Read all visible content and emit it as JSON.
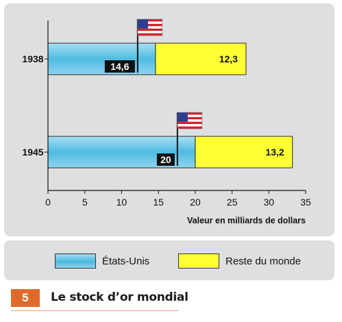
{
  "chart_data": {
    "type": "bar",
    "orientation": "horizontal",
    "stacked": true,
    "categories": [
      "1938",
      "1945"
    ],
    "series": [
      {
        "name": "États-Unis",
        "values": [
          14.6,
          20
        ],
        "labels": [
          "14,6",
          "20"
        ],
        "color": "#5cc3e6"
      },
      {
        "name": "Reste du monde",
        "values": [
          12.3,
          13.2
        ],
        "labels": [
          "12,3",
          "13,2"
        ],
        "color": "#ffff33"
      }
    ],
    "xlim": [
      0,
      35
    ],
    "xticks": [
      "0",
      "5",
      "10",
      "15",
      "20",
      "25",
      "30",
      "35"
    ],
    "xlabel": "Valeur en milliards de dollars",
    "grid": false,
    "legend_position": "bottom",
    "annotations": [
      "us-flag"
    ]
  },
  "caption": {
    "number": "5",
    "title": "Le stock d’or mondial"
  }
}
